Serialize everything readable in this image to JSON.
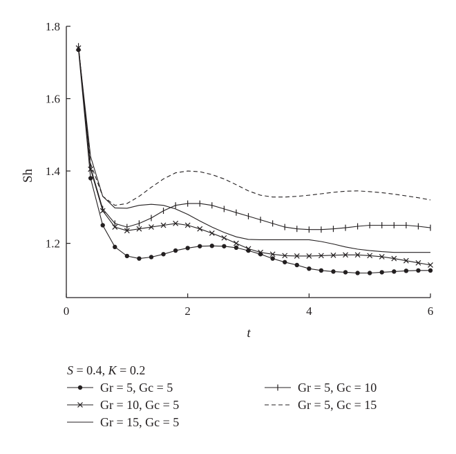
{
  "chart_data": {
    "type": "line",
    "title": "",
    "xlabel": "t",
    "ylabel": "Sh",
    "xlim": [
      0,
      6
    ],
    "ylim": [
      1.05,
      1.8
    ],
    "xticks": [
      0,
      2,
      4,
      6
    ],
    "yticks": [
      1.2,
      1.4,
      1.6,
      1.8
    ],
    "grid": false,
    "legend_position": "bottom",
    "parameters": {
      "S": "0.4",
      "K": "0.2"
    },
    "series": [
      {
        "name": "Gr = 5, Gc = 5",
        "style": "solid-dot",
        "x": [
          0.2,
          0.4,
          0.6,
          0.8,
          1.0,
          1.2,
          1.4,
          1.6,
          1.8,
          2.0,
          2.2,
          2.4,
          2.6,
          2.8,
          3.0,
          3.2,
          3.4,
          3.6,
          3.8,
          4.0,
          4.2,
          4.4,
          4.6,
          4.8,
          5.0,
          5.2,
          5.4,
          5.6,
          5.8,
          6.0
        ],
        "y": [
          1.735,
          1.38,
          1.25,
          1.19,
          1.165,
          1.158,
          1.162,
          1.17,
          1.18,
          1.187,
          1.192,
          1.193,
          1.192,
          1.188,
          1.18,
          1.17,
          1.158,
          1.148,
          1.14,
          1.13,
          1.125,
          1.122,
          1.12,
          1.118,
          1.118,
          1.12,
          1.122,
          1.124,
          1.125,
          1.125
        ]
      },
      {
        "name": "Gr = 10, Gc = 5",
        "style": "solid-cross",
        "x": [
          0.2,
          0.4,
          0.6,
          0.8,
          1.0,
          1.2,
          1.4,
          1.6,
          1.8,
          2.0,
          2.2,
          2.4,
          2.6,
          2.8,
          3.0,
          3.2,
          3.4,
          3.6,
          3.8,
          4.0,
          4.2,
          4.4,
          4.6,
          4.8,
          5.0,
          5.2,
          5.4,
          5.6,
          5.8,
          6.0
        ],
        "y": [
          1.74,
          1.405,
          1.29,
          1.245,
          1.235,
          1.24,
          1.245,
          1.25,
          1.255,
          1.25,
          1.24,
          1.228,
          1.215,
          1.2,
          1.185,
          1.175,
          1.17,
          1.166,
          1.165,
          1.165,
          1.166,
          1.167,
          1.168,
          1.168,
          1.166,
          1.163,
          1.158,
          1.152,
          1.146,
          1.14
        ]
      },
      {
        "name": "Gr = 15, Gc = 5",
        "style": "solid",
        "x": [
          0.2,
          0.4,
          0.6,
          0.8,
          1.0,
          1.2,
          1.4,
          1.6,
          1.8,
          2.0,
          2.2,
          2.4,
          2.6,
          2.8,
          3.0,
          3.2,
          3.4,
          3.6,
          3.8,
          4.0,
          4.2,
          4.4,
          4.6,
          4.8,
          5.0,
          5.2,
          5.4,
          5.6,
          5.8,
          6.0
        ],
        "y": [
          1.74,
          1.44,
          1.33,
          1.298,
          1.297,
          1.305,
          1.308,
          1.305,
          1.295,
          1.28,
          1.262,
          1.245,
          1.23,
          1.218,
          1.211,
          1.21,
          1.21,
          1.21,
          1.21,
          1.21,
          1.205,
          1.198,
          1.19,
          1.184,
          1.18,
          1.177,
          1.175,
          1.175,
          1.175,
          1.175
        ]
      },
      {
        "name": "Gr = 5, Gc = 10",
        "style": "solid-plus",
        "x": [
          0.2,
          0.4,
          0.6,
          0.8,
          1.0,
          1.2,
          1.4,
          1.6,
          1.8,
          2.0,
          2.2,
          2.4,
          2.6,
          2.8,
          3.0,
          3.2,
          3.4,
          3.6,
          3.8,
          4.0,
          4.2,
          4.4,
          4.6,
          4.8,
          5.0,
          5.2,
          5.4,
          5.6,
          5.8,
          6.0
        ],
        "y": [
          1.745,
          1.41,
          1.295,
          1.255,
          1.245,
          1.255,
          1.27,
          1.29,
          1.305,
          1.31,
          1.31,
          1.305,
          1.295,
          1.285,
          1.275,
          1.265,
          1.255,
          1.245,
          1.24,
          1.238,
          1.238,
          1.24,
          1.243,
          1.247,
          1.25,
          1.25,
          1.25,
          1.25,
          1.247,
          1.243
        ]
      },
      {
        "name": "Gr = 5, Gc = 15",
        "style": "dashed",
        "x": [
          0.2,
          0.4,
          0.6,
          0.8,
          1.0,
          1.2,
          1.4,
          1.6,
          1.8,
          2.0,
          2.2,
          2.4,
          2.6,
          2.8,
          3.0,
          3.2,
          3.4,
          3.6,
          3.8,
          4.0,
          4.2,
          4.4,
          4.6,
          4.8,
          5.0,
          5.2,
          5.4,
          5.6,
          5.8,
          6.0
        ],
        "y": [
          1.745,
          1.42,
          1.33,
          1.305,
          1.31,
          1.33,
          1.355,
          1.378,
          1.395,
          1.4,
          1.398,
          1.39,
          1.378,
          1.362,
          1.345,
          1.333,
          1.328,
          1.328,
          1.33,
          1.333,
          1.337,
          1.341,
          1.344,
          1.345,
          1.343,
          1.34,
          1.336,
          1.331,
          1.326,
          1.32
        ]
      }
    ]
  }
}
